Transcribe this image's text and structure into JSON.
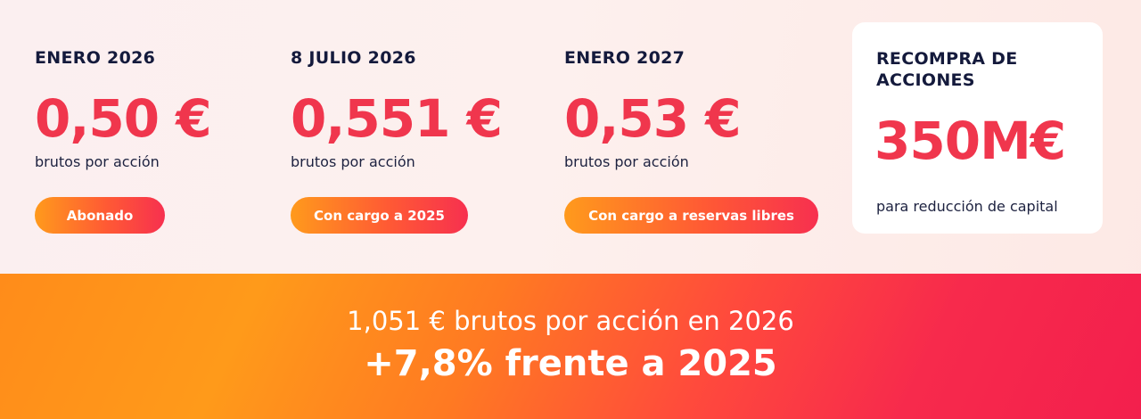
{
  "payments": [
    {
      "date": "ENERO 2026",
      "amount": "0,50 €",
      "unit": "brutos por acción",
      "status": "Abonado"
    },
    {
      "date": "8 JULIO 2026",
      "amount": "0,551 €",
      "unit": "brutos por acción",
      "status": "Con cargo a 2025"
    },
    {
      "date": "ENERO 2027",
      "amount": "0,53 €",
      "unit": "brutos por acción",
      "status": "Con cargo a reservas libres"
    }
  ],
  "buyback": {
    "title": "RECOMPRA DE ACCIONES",
    "amount": "350M€",
    "caption": "para reducción de capital"
  },
  "summary": {
    "line1": "1,051 € brutos por acción en 2026",
    "line2": "+7,8% frente a 2025"
  },
  "colors": {
    "accent": "#f0364d",
    "navy": "#141a3c",
    "orange": "#ff9a1c",
    "background": "#fbeff0"
  }
}
